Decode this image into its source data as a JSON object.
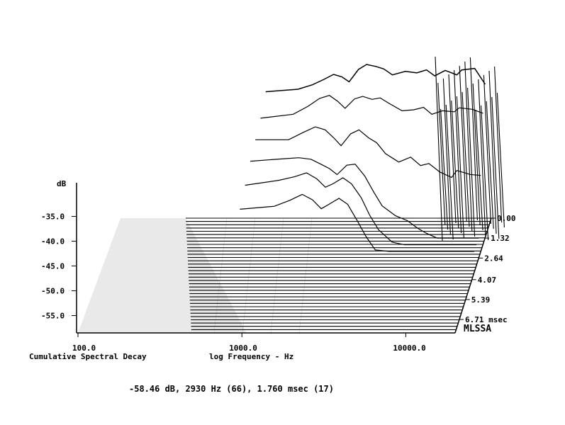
{
  "chart_data": {
    "type": "waterfall",
    "title": "Cumulative Spectral Decay",
    "xlabel": "log Frequency - Hz",
    "ylabel": "dB",
    "zlabel": "msec",
    "brand": "MLSSA",
    "x_scale": "log",
    "xlim": [
      100,
      20000
    ],
    "x_ticks": [
      "100.0",
      "1000.0",
      "10000.0"
    ],
    "y_ticks": [
      "-35.0",
      "-40.0",
      "-45.0",
      "-50.0",
      "-55.0"
    ],
    "y_range": [
      -58.5,
      -30
    ],
    "time_ticks": [
      "0.00",
      "1.32",
      "2.64",
      "4.07",
      "5.39",
      "6.71"
    ],
    "time_unit": "msec",
    "slices_shown": 36,
    "cursor_readout": "-58.46 dB, 2930 Hz (66), 1.760 msec (17)",
    "series": [
      {
        "time_ms": 0.0,
        "points": [
          [
            400,
            -33.0
          ],
          [
            700,
            -32.5
          ],
          [
            900,
            -31.6
          ],
          [
            1100,
            -30.5
          ],
          [
            1300,
            -29.5
          ],
          [
            1500,
            -30.0
          ],
          [
            1700,
            -31.0
          ],
          [
            2000,
            -28.5
          ],
          [
            2300,
            -27.5
          ],
          [
            2700,
            -27.9
          ],
          [
            3100,
            -28.4
          ],
          [
            3600,
            -29.6
          ],
          [
            4500,
            -28.9
          ],
          [
            5500,
            -29.2
          ],
          [
            6500,
            -28.6
          ],
          [
            7500,
            -29.8
          ],
          [
            9000,
            -28.7
          ],
          [
            11000,
            -29.6
          ],
          [
            12000,
            -28.6
          ],
          [
            15000,
            -28.3
          ],
          [
            18000,
            -31.5
          ]
        ]
      },
      {
        "time_ms": 0.44,
        "points": [
          [
            400,
            -37.0
          ],
          [
            700,
            -36.2
          ],
          [
            900,
            -34.6
          ],
          [
            1100,
            -33.0
          ],
          [
            1300,
            -32.4
          ],
          [
            1500,
            -33.6
          ],
          [
            1700,
            -35.0
          ],
          [
            2000,
            -33.1
          ],
          [
            2300,
            -32.6
          ],
          [
            2700,
            -33.2
          ],
          [
            3100,
            -32.9
          ],
          [
            3600,
            -34.0
          ],
          [
            4500,
            -35.5
          ],
          [
            5500,
            -35.3
          ],
          [
            6500,
            -34.8
          ],
          [
            7500,
            -36.2
          ],
          [
            9000,
            -35.5
          ],
          [
            11000,
            -35.7
          ],
          [
            12000,
            -34.9
          ],
          [
            15000,
            -35.2
          ],
          [
            18000,
            -36.0
          ]
        ]
      },
      {
        "time_ms": 0.88,
        "points": [
          [
            400,
            -40.0
          ],
          [
            700,
            -40.0
          ],
          [
            900,
            -38.5
          ],
          [
            1100,
            -37.4
          ],
          [
            1300,
            -38.0
          ],
          [
            1500,
            -39.6
          ],
          [
            1700,
            -41.2
          ],
          [
            2000,
            -38.8
          ],
          [
            2300,
            -38.0
          ],
          [
            2700,
            -39.6
          ],
          [
            3100,
            -40.6
          ],
          [
            3600,
            -42.8
          ],
          [
            4500,
            -44.5
          ],
          [
            5500,
            -43.5
          ],
          [
            6500,
            -45.2
          ],
          [
            7500,
            -44.8
          ],
          [
            9000,
            -46.5
          ],
          [
            11000,
            -47.6
          ],
          [
            12000,
            -46.2
          ],
          [
            15000,
            -47.0
          ],
          [
            18000,
            -47.2
          ]
        ]
      },
      {
        "time_ms": 1.32,
        "points": [
          [
            400,
            -43.0
          ],
          [
            700,
            -42.5
          ],
          [
            900,
            -42.3
          ],
          [
            1100,
            -42.6
          ],
          [
            1300,
            -43.6
          ],
          [
            1500,
            -44.5
          ],
          [
            1700,
            -45.7
          ],
          [
            2000,
            -43.8
          ],
          [
            2300,
            -43.6
          ],
          [
            2700,
            -46.0
          ],
          [
            3100,
            -49.0
          ],
          [
            3600,
            -52.0
          ],
          [
            4500,
            -54.0
          ],
          [
            5500,
            -55.0
          ],
          [
            6500,
            -56.5
          ],
          [
            7500,
            -57.5
          ],
          [
            9000,
            -58.5
          ],
          [
            11000,
            -58.5
          ],
          [
            12000,
            -58.5
          ],
          [
            15000,
            -58.5
          ],
          [
            18000,
            -58.5
          ]
        ]
      },
      {
        "time_ms": 1.76,
        "points": [
          [
            400,
            -46.5
          ],
          [
            700,
            -45.5
          ],
          [
            900,
            -44.8
          ],
          [
            1100,
            -44.0
          ],
          [
            1300,
            -45.2
          ],
          [
            1500,
            -46.9
          ],
          [
            1700,
            -46.2
          ],
          [
            2000,
            -45.0
          ],
          [
            2300,
            -46.2
          ],
          [
            2700,
            -49.0
          ],
          [
            3100,
            -52.5
          ],
          [
            3600,
            -55.5
          ],
          [
            4500,
            -58.0
          ],
          [
            5500,
            -58.5
          ],
          [
            6500,
            -58.5
          ],
          [
            7500,
            -58.5
          ],
          [
            9000,
            -58.5
          ],
          [
            11000,
            -58.5
          ],
          [
            12000,
            -58.5
          ],
          [
            15000,
            -58.5
          ],
          [
            18000,
            -58.5
          ]
        ]
      },
      {
        "time_ms": 2.2,
        "points": [
          [
            400,
            -50.0
          ],
          [
            700,
            -49.4
          ],
          [
            900,
            -48.2
          ],
          [
            1100,
            -47.0
          ],
          [
            1300,
            -48.1
          ],
          [
            1500,
            -49.9
          ],
          [
            1700,
            -49.0
          ],
          [
            2000,
            -47.8
          ],
          [
            2300,
            -49.0
          ],
          [
            2700,
            -52.4
          ],
          [
            3100,
            -55.5
          ],
          [
            3600,
            -58.2
          ],
          [
            4500,
            -58.5
          ],
          [
            5500,
            -58.5
          ],
          [
            6500,
            -58.5
          ],
          [
            7500,
            -58.5
          ],
          [
            9000,
            -58.5
          ],
          [
            11000,
            -58.5
          ],
          [
            12000,
            -58.5
          ],
          [
            15000,
            -58.5
          ],
          [
            18000,
            -58.5
          ]
        ]
      }
    ]
  }
}
